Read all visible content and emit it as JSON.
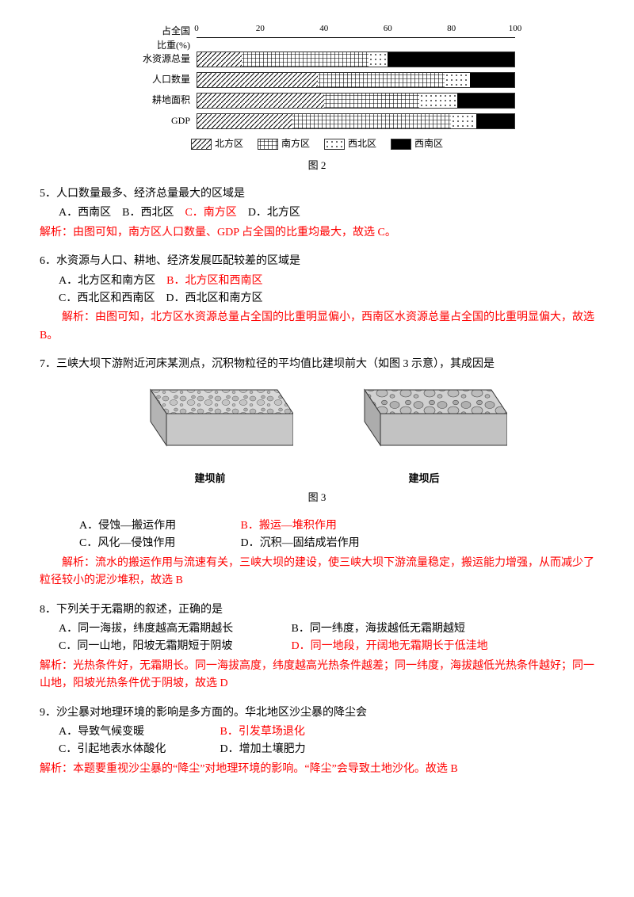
{
  "chart": {
    "type": "stacked-bar-horizontal",
    "axis_label_top": "占全国",
    "axis_label_bottom": "比重(%)",
    "xlim": [
      0,
      100
    ],
    "ticks": [
      0,
      20,
      40,
      60,
      80,
      100
    ],
    "rows": [
      {
        "label": "水资源总量",
        "segs": [
          14,
          40,
          6,
          40
        ]
      },
      {
        "label": "人口数量",
        "segs": [
          38,
          40,
          8,
          14
        ]
      },
      {
        "label": "耕地面积",
        "segs": [
          40,
          30,
          12,
          18
        ]
      },
      {
        "label": "GDP",
        "segs": [
          30,
          50,
          8,
          12
        ]
      }
    ],
    "legend": [
      "北方区",
      "南方区",
      "西北区",
      "西南区"
    ],
    "fills": [
      "url(#diag)",
      "url(#cross)",
      "url(#dots)",
      "#000000"
    ],
    "caption": "图 2"
  },
  "q5": {
    "text": "5．人口数量最多、经济总量最大的区域是",
    "opts": {
      "a": "A．西南区",
      "b": "B．西北区",
      "c": "C．南方区",
      "d": "D．北方区"
    },
    "expl": "解析：由图可知，南方区人口数量、GDP 占全国的比重均最大，故选 C。"
  },
  "q6": {
    "text": "6．水资源与人口、耕地、经济发展匹配较差的区域是",
    "opts": {
      "a": "A．北方区和南方区",
      "b": "B．北方区和西南区",
      "c": "C．西北区和西南区",
      "d": "D．西北区和南方区"
    },
    "expl": "解析：由图可知，北方区水资源总量占全国的比重明显偏小，西南区水资源总量占全国的比重明显偏大，故选 B。"
  },
  "q7": {
    "text": "7．三峡大坝下游附近河床某测点，沉积物粒径的平均值比建坝前大（如图 3 示意），其成因是",
    "caption": "图 3",
    "before_label": "建坝前",
    "after_label": "建坝后",
    "opts": {
      "a": "A．侵蚀—搬运作用",
      "b": "B．搬运—堆积作用",
      "c": "C．风化—侵蚀作用",
      "d": "D．沉积—固结成岩作用"
    },
    "expl": "解析：流水的搬运作用与流速有关，三峡大坝的建设，使三峡大坝下游流量稳定，搬运能力增强，从而减少了粒径较小的泥沙堆积，故选 B"
  },
  "q8": {
    "text": "8．下列关于无霜期的叙述，正确的是",
    "opts": {
      "a": "A．同一海拔，纬度越高无霜期越长",
      "b": "B．同一纬度，海拔越低无霜期越短",
      "c": "C．同一山地，阳坡无霜期短于阴坡",
      "d": "D．同一地段，开阔地无霜期长于低洼地"
    },
    "expl": "解析：光热条件好，无霜期长。同一海拔高度，纬度越高光热条件越差；同一纬度，海拔越低光热条件越好；同一山地，阳坡光热条件优于阴坡，故选 D"
  },
  "q9": {
    "text": "9．沙尘暴对地理环境的影响是多方面的。华北地区沙尘暴的降尘会",
    "opts": {
      "a": "A．导致气候变暖",
      "b": "B．引发草场退化",
      "c": "C．引起地表水体酸化",
      "d": "D．增加土壤肥力"
    },
    "expl": "解析：本题要重视沙尘暴的“降尘”对地理环境的影响。“降尘”会导致土地沙化。故选 B"
  }
}
